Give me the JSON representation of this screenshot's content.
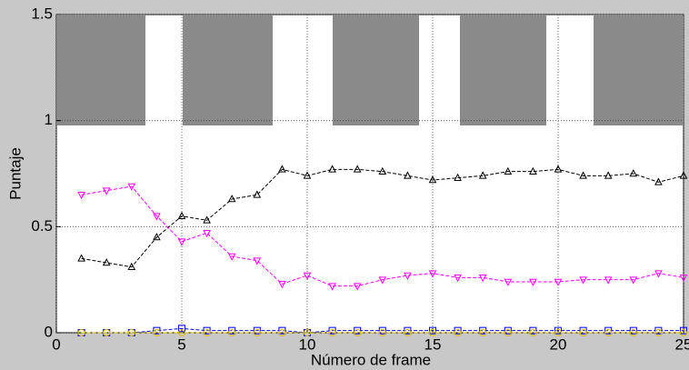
{
  "chart_data": {
    "type": "line",
    "x_label": "Número de frame",
    "y_label": "Puntaje",
    "x": [
      1,
      2,
      3,
      4,
      5,
      6,
      7,
      8,
      9,
      10,
      11,
      12,
      13,
      14,
      15,
      16,
      17,
      18,
      19,
      20,
      21,
      22,
      23,
      24,
      25
    ],
    "series": [
      {
        "color": "#000000",
        "marker": "triangle-up",
        "values": [
          0.35,
          0.33,
          0.31,
          0.45,
          0.55,
          0.53,
          0.63,
          0.65,
          0.77,
          0.74,
          0.77,
          0.77,
          0.76,
          0.74,
          0.72,
          0.73,
          0.74,
          0.76,
          0.76,
          0.77,
          0.74,
          0.74,
          0.75,
          0.71,
          0.74
        ]
      },
      {
        "color": "#ff00ff",
        "marker": "triangle-down",
        "values": [
          0.65,
          0.67,
          0.69,
          0.55,
          0.43,
          0.47,
          0.36,
          0.34,
          0.23,
          0.27,
          0.22,
          0.22,
          0.25,
          0.27,
          0.28,
          0.26,
          0.26,
          0.24,
          0.24,
          0.24,
          0.25,
          0.25,
          0.25,
          0.28,
          0.26
        ]
      },
      {
        "color": "#0000ff",
        "marker": "square",
        "values": [
          0,
          0,
          0,
          0.01,
          0.02,
          0.01,
          0.01,
          0.01,
          0.01,
          0,
          0.01,
          0.01,
          0.01,
          0.01,
          0.01,
          0.01,
          0.01,
          0.01,
          0.01,
          0.01,
          0.01,
          0.01,
          0.01,
          0.01,
          0.01
        ]
      },
      {
        "color": "#e0c000",
        "marker": "circle",
        "values": [
          0,
          0,
          0,
          0,
          0,
          0,
          0,
          0,
          0,
          0,
          0,
          0,
          0,
          0,
          0,
          0,
          0,
          0,
          0,
          0,
          0,
          0,
          0,
          0,
          0
        ]
      }
    ],
    "xlim": [
      0,
      25
    ],
    "xticks": [
      0,
      5,
      10,
      15,
      20,
      25
    ],
    "ylim": [
      0,
      1.5
    ],
    "yticks": [
      0,
      0.5,
      1,
      1.5
    ],
    "grid": true
  }
}
